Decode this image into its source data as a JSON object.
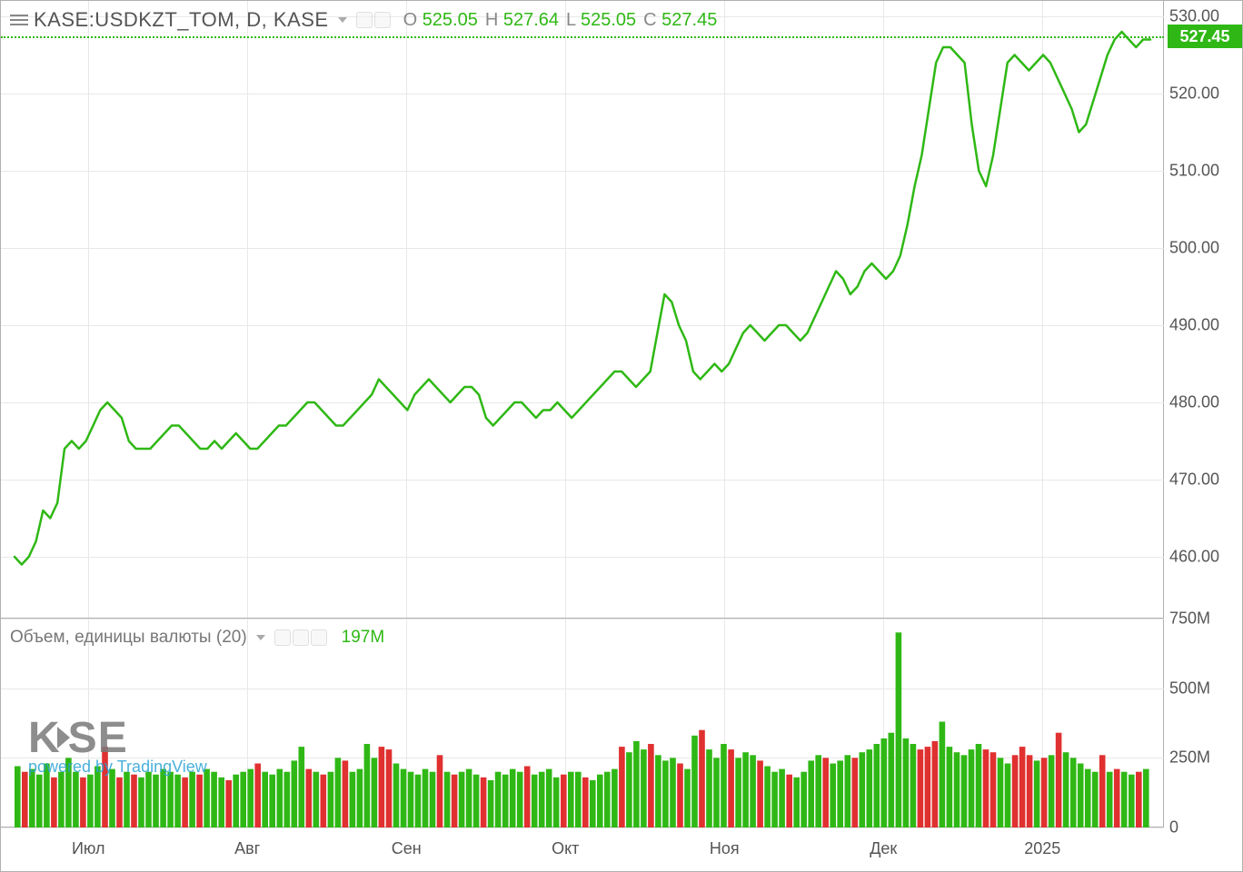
{
  "symbol": "KASE:USDKZT_TOM, D, KASE",
  "ohlc": {
    "O": "525.05",
    "H": "527.64",
    "L": "525.05",
    "C": "527.45"
  },
  "current_price": "527.45",
  "volume_label": "Объем, единицы валюты (20)",
  "volume_value": "197M",
  "watermark": {
    "brand": "KASE",
    "subtitle": "powered by TradingView"
  },
  "colors": {
    "line": "#2fb815",
    "up_bar": "#2fb815",
    "down_bar": "#e03030",
    "grid": "#e8e8e8",
    "axis_text": "#555555",
    "background": "#ffffff"
  },
  "price_chart": {
    "type": "line",
    "ylim": [
      452,
      532
    ],
    "yticks": [
      460,
      470,
      480,
      490,
      500,
      510,
      520,
      530
    ],
    "line_width": 2.5,
    "data": [
      460,
      459,
      460,
      462,
      466,
      465,
      467,
      474,
      475,
      474,
      475,
      477,
      479,
      480,
      479,
      478,
      475,
      474,
      474,
      474,
      475,
      476,
      477,
      477,
      476,
      475,
      474,
      474,
      475,
      474,
      475,
      476,
      475,
      474,
      474,
      475,
      476,
      477,
      477,
      478,
      479,
      480,
      480,
      479,
      478,
      477,
      477,
      478,
      479,
      480,
      481,
      483,
      482,
      481,
      480,
      479,
      481,
      482,
      483,
      482,
      481,
      480,
      481,
      482,
      482,
      481,
      478,
      477,
      478,
      479,
      480,
      480,
      479,
      478,
      479,
      479,
      480,
      479,
      478,
      479,
      480,
      481,
      482,
      483,
      484,
      484,
      483,
      482,
      483,
      484,
      489,
      494,
      493,
      490,
      488,
      484,
      483,
      484,
      485,
      484,
      485,
      487,
      489,
      490,
      489,
      488,
      489,
      490,
      490,
      489,
      488,
      489,
      491,
      493,
      495,
      497,
      496,
      494,
      495,
      497,
      498,
      497,
      496,
      497,
      499,
      503,
      508,
      512,
      518,
      524,
      526,
      526,
      525,
      524,
      516,
      510,
      508,
      512,
      518,
      524,
      525,
      524,
      523,
      524,
      525,
      524,
      522,
      520,
      518,
      515,
      516,
      519,
      522,
      525,
      527,
      528,
      527,
      526,
      527,
      527
    ]
  },
  "volume_chart": {
    "type": "bar",
    "ylim": [
      0,
      750
    ],
    "yticks": [
      0,
      250,
      500,
      750
    ],
    "ytick_labels": [
      "0",
      "250M",
      "500M",
      "750M"
    ],
    "bars": [
      {
        "v": 220,
        "d": "u"
      },
      {
        "v": 200,
        "d": "d"
      },
      {
        "v": 210,
        "d": "u"
      },
      {
        "v": 190,
        "d": "u"
      },
      {
        "v": 230,
        "d": "u"
      },
      {
        "v": 180,
        "d": "d"
      },
      {
        "v": 200,
        "d": "u"
      },
      {
        "v": 250,
        "d": "u"
      },
      {
        "v": 200,
        "d": "u"
      },
      {
        "v": 180,
        "d": "d"
      },
      {
        "v": 190,
        "d": "u"
      },
      {
        "v": 220,
        "d": "u"
      },
      {
        "v": 290,
        "d": "d"
      },
      {
        "v": 210,
        "d": "u"
      },
      {
        "v": 180,
        "d": "d"
      },
      {
        "v": 200,
        "d": "u"
      },
      {
        "v": 190,
        "d": "d"
      },
      {
        "v": 180,
        "d": "u"
      },
      {
        "v": 200,
        "d": "u"
      },
      {
        "v": 190,
        "d": "u"
      },
      {
        "v": 210,
        "d": "u"
      },
      {
        "v": 200,
        "d": "u"
      },
      {
        "v": 190,
        "d": "u"
      },
      {
        "v": 180,
        "d": "d"
      },
      {
        "v": 200,
        "d": "u"
      },
      {
        "v": 190,
        "d": "d"
      },
      {
        "v": 210,
        "d": "u"
      },
      {
        "v": 200,
        "d": "u"
      },
      {
        "v": 180,
        "d": "u"
      },
      {
        "v": 170,
        "d": "d"
      },
      {
        "v": 190,
        "d": "u"
      },
      {
        "v": 200,
        "d": "u"
      },
      {
        "v": 210,
        "d": "u"
      },
      {
        "v": 230,
        "d": "d"
      },
      {
        "v": 200,
        "d": "u"
      },
      {
        "v": 190,
        "d": "u"
      },
      {
        "v": 210,
        "d": "u"
      },
      {
        "v": 200,
        "d": "u"
      },
      {
        "v": 240,
        "d": "u"
      },
      {
        "v": 290,
        "d": "u"
      },
      {
        "v": 210,
        "d": "d"
      },
      {
        "v": 200,
        "d": "u"
      },
      {
        "v": 190,
        "d": "d"
      },
      {
        "v": 200,
        "d": "u"
      },
      {
        "v": 250,
        "d": "u"
      },
      {
        "v": 240,
        "d": "d"
      },
      {
        "v": 200,
        "d": "u"
      },
      {
        "v": 210,
        "d": "u"
      },
      {
        "v": 300,
        "d": "u"
      },
      {
        "v": 250,
        "d": "u"
      },
      {
        "v": 290,
        "d": "d"
      },
      {
        "v": 280,
        "d": "d"
      },
      {
        "v": 230,
        "d": "u"
      },
      {
        "v": 210,
        "d": "u"
      },
      {
        "v": 200,
        "d": "u"
      },
      {
        "v": 190,
        "d": "u"
      },
      {
        "v": 210,
        "d": "u"
      },
      {
        "v": 200,
        "d": "u"
      },
      {
        "v": 260,
        "d": "d"
      },
      {
        "v": 200,
        "d": "u"
      },
      {
        "v": 190,
        "d": "d"
      },
      {
        "v": 200,
        "d": "u"
      },
      {
        "v": 210,
        "d": "u"
      },
      {
        "v": 190,
        "d": "u"
      },
      {
        "v": 180,
        "d": "d"
      },
      {
        "v": 170,
        "d": "u"
      },
      {
        "v": 200,
        "d": "u"
      },
      {
        "v": 190,
        "d": "u"
      },
      {
        "v": 210,
        "d": "u"
      },
      {
        "v": 200,
        "d": "u"
      },
      {
        "v": 220,
        "d": "d"
      },
      {
        "v": 190,
        "d": "u"
      },
      {
        "v": 200,
        "d": "u"
      },
      {
        "v": 210,
        "d": "u"
      },
      {
        "v": 180,
        "d": "u"
      },
      {
        "v": 190,
        "d": "d"
      },
      {
        "v": 200,
        "d": "u"
      },
      {
        "v": 200,
        "d": "u"
      },
      {
        "v": 180,
        "d": "d"
      },
      {
        "v": 170,
        "d": "u"
      },
      {
        "v": 190,
        "d": "u"
      },
      {
        "v": 200,
        "d": "u"
      },
      {
        "v": 210,
        "d": "u"
      },
      {
        "v": 290,
        "d": "d"
      },
      {
        "v": 270,
        "d": "u"
      },
      {
        "v": 310,
        "d": "u"
      },
      {
        "v": 280,
        "d": "u"
      },
      {
        "v": 300,
        "d": "d"
      },
      {
        "v": 260,
        "d": "u"
      },
      {
        "v": 240,
        "d": "u"
      },
      {
        "v": 250,
        "d": "u"
      },
      {
        "v": 230,
        "d": "d"
      },
      {
        "v": 210,
        "d": "u"
      },
      {
        "v": 330,
        "d": "u"
      },
      {
        "v": 350,
        "d": "d"
      },
      {
        "v": 280,
        "d": "u"
      },
      {
        "v": 250,
        "d": "u"
      },
      {
        "v": 300,
        "d": "u"
      },
      {
        "v": 280,
        "d": "d"
      },
      {
        "v": 250,
        "d": "u"
      },
      {
        "v": 270,
        "d": "u"
      },
      {
        "v": 260,
        "d": "u"
      },
      {
        "v": 240,
        "d": "d"
      },
      {
        "v": 220,
        "d": "u"
      },
      {
        "v": 200,
        "d": "u"
      },
      {
        "v": 210,
        "d": "u"
      },
      {
        "v": 190,
        "d": "d"
      },
      {
        "v": 180,
        "d": "u"
      },
      {
        "v": 200,
        "d": "u"
      },
      {
        "v": 240,
        "d": "u"
      },
      {
        "v": 260,
        "d": "u"
      },
      {
        "v": 250,
        "d": "d"
      },
      {
        "v": 230,
        "d": "u"
      },
      {
        "v": 240,
        "d": "u"
      },
      {
        "v": 260,
        "d": "u"
      },
      {
        "v": 250,
        "d": "d"
      },
      {
        "v": 270,
        "d": "u"
      },
      {
        "v": 280,
        "d": "u"
      },
      {
        "v": 300,
        "d": "u"
      },
      {
        "v": 320,
        "d": "u"
      },
      {
        "v": 340,
        "d": "u"
      },
      {
        "v": 700,
        "d": "u"
      },
      {
        "v": 320,
        "d": "u"
      },
      {
        "v": 300,
        "d": "u"
      },
      {
        "v": 280,
        "d": "d"
      },
      {
        "v": 290,
        "d": "d"
      },
      {
        "v": 310,
        "d": "d"
      },
      {
        "v": 380,
        "d": "u"
      },
      {
        "v": 290,
        "d": "u"
      },
      {
        "v": 270,
        "d": "u"
      },
      {
        "v": 260,
        "d": "u"
      },
      {
        "v": 280,
        "d": "u"
      },
      {
        "v": 300,
        "d": "u"
      },
      {
        "v": 280,
        "d": "d"
      },
      {
        "v": 270,
        "d": "d"
      },
      {
        "v": 250,
        "d": "u"
      },
      {
        "v": 230,
        "d": "u"
      },
      {
        "v": 260,
        "d": "d"
      },
      {
        "v": 290,
        "d": "d"
      },
      {
        "v": 260,
        "d": "d"
      },
      {
        "v": 240,
        "d": "u"
      },
      {
        "v": 250,
        "d": "d"
      },
      {
        "v": 260,
        "d": "u"
      },
      {
        "v": 340,
        "d": "d"
      },
      {
        "v": 270,
        "d": "u"
      },
      {
        "v": 250,
        "d": "u"
      },
      {
        "v": 230,
        "d": "u"
      },
      {
        "v": 210,
        "d": "u"
      },
      {
        "v": 200,
        "d": "u"
      },
      {
        "v": 260,
        "d": "d"
      },
      {
        "v": 200,
        "d": "u"
      },
      {
        "v": 210,
        "d": "d"
      },
      {
        "v": 200,
        "d": "u"
      },
      {
        "v": 190,
        "d": "u"
      },
      {
        "v": 200,
        "d": "d"
      },
      {
        "v": 210,
        "d": "u"
      }
    ]
  },
  "x_axis": {
    "labels": [
      "Июл",
      "Авг",
      "Сен",
      "Окт",
      "Ноя",
      "Дек",
      "2025"
    ],
    "positions": [
      0.065,
      0.205,
      0.345,
      0.485,
      0.625,
      0.765,
      0.905
    ]
  }
}
